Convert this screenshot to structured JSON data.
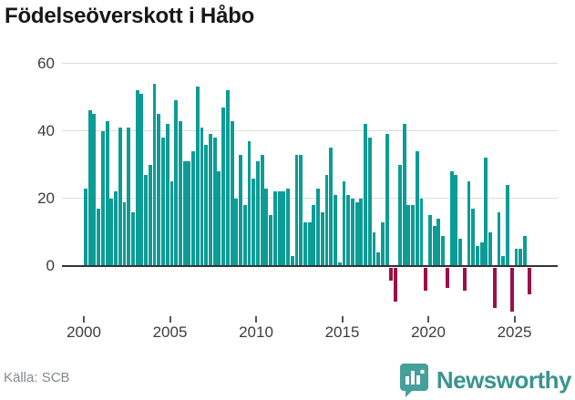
{
  "title": "Födelseöverskott i Håbo",
  "footer": {
    "source": "Källa: SCB",
    "brand": "Newsworthy"
  },
  "colors": {
    "positive_bar": "#0c9c95",
    "negative_bar": "#9b1047",
    "brand_teal": "#3a948e",
    "icon_teal": "#45a09a",
    "axis_line": "#333333",
    "gridline": "#dddddd",
    "axis_text": "#3d3d3d",
    "source_text": "#85898d"
  },
  "chart_data": {
    "type": "bar",
    "title": "Födelseöverskott i Håbo",
    "frequency": "quarterly",
    "start_year": 2000,
    "end_year": 2025,
    "x_tick_labels": [
      "2000",
      "2005",
      "2010",
      "2015",
      "2020",
      "2025"
    ],
    "y_tick_labels": [
      "0",
      "20",
      "40",
      "60"
    ],
    "y_ticks": [
      0,
      20,
      40,
      60
    ],
    "ylim": [
      -15,
      62
    ],
    "grid": "horizontal",
    "legend": "none",
    "series": [
      {
        "name": "Födelseöverskott",
        "values": [
          23,
          46,
          45,
          17,
          40,
          43,
          20,
          22,
          41,
          19,
          41,
          16,
          52,
          51,
          27,
          30,
          54,
          45,
          38,
          42,
          25,
          49,
          43,
          31,
          31,
          34,
          53,
          41,
          36,
          39,
          38,
          28,
          47,
          52,
          43,
          20,
          33,
          18,
          37,
          26,
          31,
          33,
          23,
          15,
          22,
          22,
          22,
          23,
          3,
          33,
          33,
          13,
          13,
          18,
          23,
          16,
          27,
          35,
          21,
          1,
          25,
          21,
          20,
          19,
          20,
          42,
          38,
          10,
          4,
          13,
          39,
          -4,
          -10,
          30,
          42,
          18,
          18,
          34,
          20,
          -7,
          15,
          12,
          14,
          9,
          -6,
          28,
          27,
          8,
          -7,
          25,
          17,
          6,
          7,
          32,
          10,
          -12,
          16,
          3,
          24,
          -13,
          5,
          5,
          9,
          -8
        ]
      }
    ]
  }
}
